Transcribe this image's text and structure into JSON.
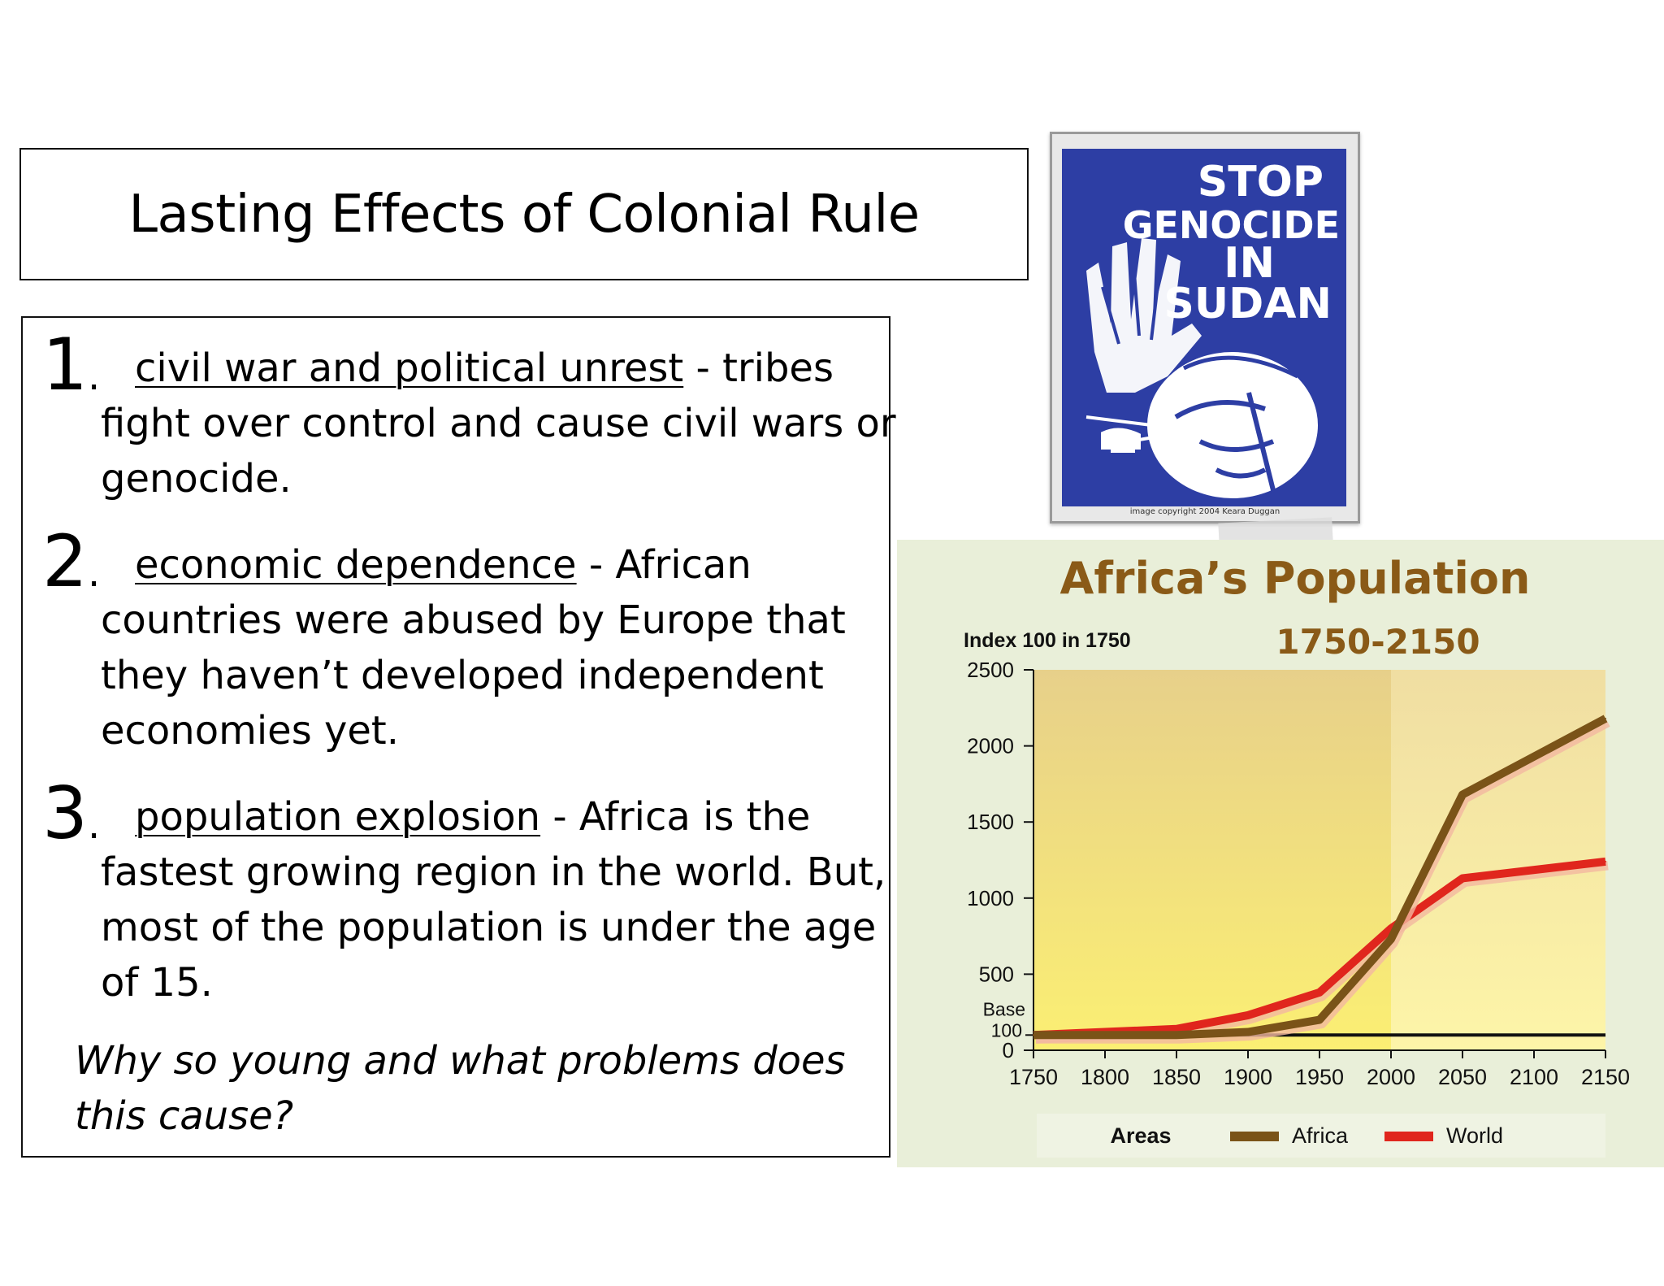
{
  "title": "Lasting Effects of Colonial Rule",
  "items": [
    {
      "number": "1",
      "term": "civil war and political unrest",
      "text": " - tribes fight over control and cause civil wars or genocide."
    },
    {
      "number": "2",
      "term": "economic dependence",
      "text": " - African countries were abused by Europe that they haven’t developed independent economies yet."
    },
    {
      "number": "3",
      "term": "population explosion",
      "text": " - Africa is the fastest growing region in the world. But, most of the population is under the age of 15."
    }
  ],
  "question": "Why so young and what problems does this cause?",
  "poster": {
    "headline_lines": [
      "STOP",
      "GENOCIDE",
      "IN",
      "SUDAN"
    ],
    "credit": "image copyright 2004 Keara Duggan",
    "background_color": "#2d3ea4"
  },
  "chart_data": {
    "type": "line",
    "title": "Africa’s Population",
    "subtitle": "1750-2150",
    "ylabel": "Index 100 in 1750",
    "x": [
      1750,
      1800,
      1850,
      1900,
      1950,
      2000,
      2050,
      2100,
      2150
    ],
    "x_tick_labels": [
      "1750",
      "1800",
      "1850",
      "1900",
      "1950",
      "2000",
      "2050",
      "2100",
      "2150"
    ],
    "y_ticks": [
      0,
      500,
      1000,
      1500,
      2000,
      2500
    ],
    "y_tick_labels": [
      "0",
      "500",
      "1000",
      "1500",
      "2000",
      "2500"
    ],
    "base_annotation": [
      "Base",
      "100"
    ],
    "base_value": 100,
    "ylim": [
      0,
      2500
    ],
    "xlim": [
      1750,
      2150
    ],
    "projection_start": 2000,
    "series": [
      {
        "name": "Africa",
        "color": "#7a5318",
        "x": [
          1750,
          1800,
          1850,
          1900,
          1950,
          2000,
          2050,
          2150
        ],
        "values": [
          100,
          100,
          100,
          120,
          200,
          730,
          1680,
          2180
        ]
      },
      {
        "name": "World",
        "color": "#e0261d",
        "x": [
          1750,
          1800,
          1850,
          1900,
          1950,
          2000,
          2050,
          2150
        ],
        "values": [
          100,
          120,
          140,
          230,
          380,
          800,
          1130,
          1240
        ]
      }
    ],
    "legend_title": "Areas",
    "legend_position": "bottom"
  }
}
